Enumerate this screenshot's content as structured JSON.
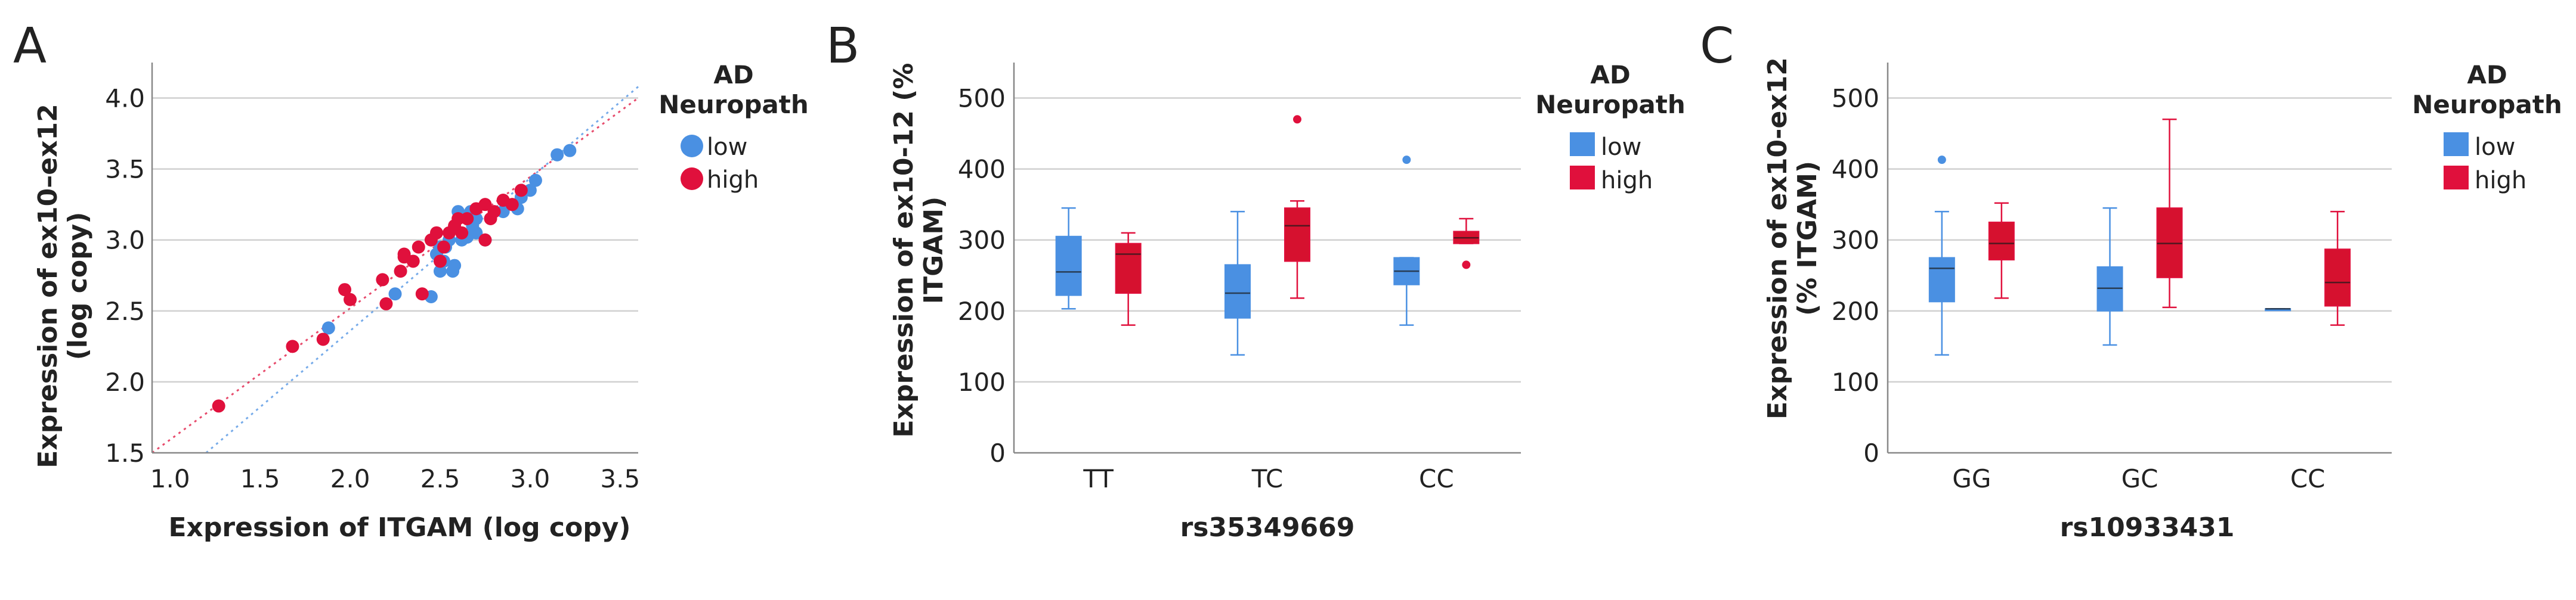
{
  "colors": {
    "low": "#4a90e2",
    "high": "#e0103c",
    "low_fill": "#4a90e2",
    "high_fill": "#d6112f"
  },
  "chart_data": [
    {
      "panel": "A",
      "type": "scatter",
      "xlabel": "Expression of ITGAM (log copy)",
      "ylabel": "Expression of ex10–ex12 (log copy)",
      "ylabel_lines": [
        "Expression of ex10–ex12",
        "(log copy)"
      ],
      "xlim": [
        0.9,
        3.6
      ],
      "ylim": [
        1.5,
        4.25
      ],
      "xticks": [
        "1.0",
        "1.5",
        "2.0",
        "2.5",
        "3.0",
        "3.5"
      ],
      "xtick_values": [
        1.0,
        1.5,
        2.0,
        2.5,
        3.0,
        3.5
      ],
      "yticks": [
        "1.5",
        "2.0",
        "2.5",
        "3.0",
        "3.5",
        "4.0"
      ],
      "ytick_values": [
        1.5,
        2.0,
        2.5,
        3.0,
        3.5,
        4.0
      ],
      "legend_title_lines": [
        "AD",
        "Neuropath"
      ],
      "legend": [
        "low",
        "high"
      ],
      "fit_lines": {
        "low": {
          "x": [
            1.2,
            3.6
          ],
          "y": [
            1.5,
            4.08
          ]
        },
        "high": {
          "x": [
            0.9,
            3.6
          ],
          "y": [
            1.5,
            4.0
          ]
        }
      },
      "series": [
        {
          "name": "low",
          "points": [
            [
              1.88,
              2.38
            ],
            [
              2.25,
              2.62
            ],
            [
              2.45,
              2.6
            ],
            [
              2.5,
              2.78
            ],
            [
              2.53,
              2.95
            ],
            [
              2.55,
              3.0
            ],
            [
              2.57,
              2.78
            ],
            [
              2.6,
              3.2
            ],
            [
              2.62,
              3.0
            ],
            [
              2.65,
              3.02
            ],
            [
              2.67,
              3.2
            ],
            [
              2.7,
              3.05
            ],
            [
              2.75,
              3.0
            ],
            [
              2.58,
              2.82
            ],
            [
              2.52,
              2.85
            ],
            [
              2.85,
              3.2
            ],
            [
              2.93,
              3.22
            ],
            [
              3.0,
              3.35
            ],
            [
              3.03,
              3.42
            ],
            [
              3.15,
              3.6
            ],
            [
              3.22,
              3.63
            ],
            [
              2.68,
              3.1
            ],
            [
              2.95,
              3.3
            ],
            [
              2.48,
              2.9
            ],
            [
              2.5,
              2.95
            ],
            [
              2.7,
              3.15
            ]
          ]
        },
        {
          "name": "high",
          "points": [
            [
              1.27,
              1.83
            ],
            [
              1.68,
              2.25
            ],
            [
              1.85,
              2.3
            ],
            [
              1.97,
              2.65
            ],
            [
              2.0,
              2.58
            ],
            [
              2.18,
              2.72
            ],
            [
              2.2,
              2.55
            ],
            [
              2.28,
              2.78
            ],
            [
              2.3,
              2.9
            ],
            [
              2.35,
              2.85
            ],
            [
              2.38,
              2.95
            ],
            [
              2.4,
              2.62
            ],
            [
              2.45,
              3.0
            ],
            [
              2.5,
              2.85
            ],
            [
              2.52,
              2.95
            ],
            [
              2.55,
              3.05
            ],
            [
              2.58,
              3.1
            ],
            [
              2.62,
              3.05
            ],
            [
              2.65,
              3.15
            ],
            [
              2.7,
              3.22
            ],
            [
              2.75,
              3.25
            ],
            [
              2.78,
              3.15
            ],
            [
              2.8,
              3.2
            ],
            [
              2.85,
              3.28
            ],
            [
              2.9,
              3.25
            ],
            [
              2.95,
              3.35
            ],
            [
              2.75,
              3.0
            ],
            [
              2.6,
              3.15
            ],
            [
              2.48,
              3.05
            ],
            [
              2.3,
              2.88
            ]
          ]
        }
      ]
    },
    {
      "panel": "B",
      "type": "box",
      "xlabel": "rs35349669",
      "ylabel": "Expression of ex10-12 (% ITGAM)",
      "ylabel_lines": [
        "Expression of ex10-12 (%",
        "ITGAM)"
      ],
      "ylim": [
        0,
        550
      ],
      "yticks": [
        "0",
        "100",
        "200",
        "300",
        "400",
        "500"
      ],
      "ytick_values": [
        0,
        100,
        200,
        300,
        400,
        500
      ],
      "categories": [
        "TT",
        "TC",
        "CC"
      ],
      "legend_title_lines": [
        "AD",
        "Neuropath"
      ],
      "legend": [
        "low",
        "high"
      ],
      "series": [
        {
          "name": "low",
          "boxes": [
            {
              "min": 203,
              "q1": 222,
              "median": 255,
              "q3": 305,
              "max": 345,
              "outliers": []
            },
            {
              "min": 138,
              "q1": 190,
              "median": 225,
              "q3": 265,
              "max": 340,
              "outliers": []
            },
            {
              "min": 180,
              "q1": 237,
              "median": 256,
              "q3": 275,
              "max": 275,
              "outliers": [
                413
              ]
            }
          ]
        },
        {
          "name": "high",
          "boxes": [
            {
              "min": 180,
              "q1": 225,
              "median": 280,
              "q3": 295,
              "max": 310,
              "outliers": []
            },
            {
              "min": 218,
              "q1": 270,
              "median": 320,
              "q3": 345,
              "max": 355,
              "outliers": [
                470
              ]
            },
            {
              "min": 295,
              "q1": 295,
              "median": 303,
              "q3": 312,
              "max": 330,
              "outliers": [
                265
              ]
            }
          ]
        }
      ]
    },
    {
      "panel": "C",
      "type": "box",
      "xlabel": "rs10933431",
      "ylabel": "Expression of ex10-ex12 (% ITGAM)",
      "ylabel_lines": [
        "Expression of ex10-ex12",
        "(% ITGAM)"
      ],
      "ylim": [
        0,
        550
      ],
      "yticks": [
        "0",
        "100",
        "200",
        "300",
        "400",
        "500"
      ],
      "ytick_values": [
        0,
        100,
        200,
        300,
        400,
        500
      ],
      "categories": [
        "GG",
        "GC",
        "CC"
      ],
      "legend_title_lines": [
        "AD",
        "Neuropath"
      ],
      "legend": [
        "low",
        "high"
      ],
      "series": [
        {
          "name": "low",
          "boxes": [
            {
              "min": 138,
              "q1": 213,
              "median": 260,
              "q3": 275,
              "max": 340,
              "outliers": [
                413
              ]
            },
            {
              "min": 152,
              "q1": 200,
              "median": 232,
              "q3": 262,
              "max": 345,
              "outliers": []
            },
            {
              "min": 203,
              "q1": 203,
              "median": 203,
              "q3": 203,
              "max": 203,
              "outliers": []
            }
          ]
        },
        {
          "name": "high",
          "boxes": [
            {
              "min": 218,
              "q1": 272,
              "median": 295,
              "q3": 325,
              "max": 352,
              "outliers": []
            },
            {
              "min": 205,
              "q1": 247,
              "median": 295,
              "q3": 345,
              "max": 470,
              "outliers": []
            },
            {
              "min": 180,
              "q1": 207,
              "median": 240,
              "q3": 287,
              "max": 340,
              "outliers": []
            }
          ]
        }
      ]
    }
  ]
}
